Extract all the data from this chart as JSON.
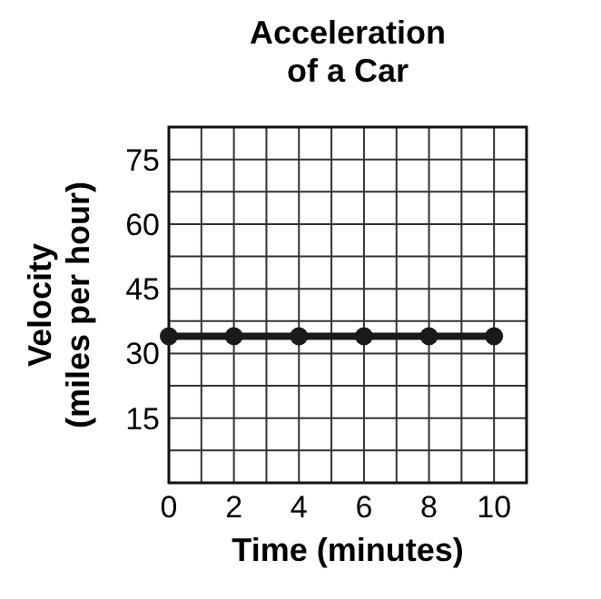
{
  "chart_data": {
    "type": "line",
    "title": "Acceleration of a Car",
    "xlabel": "Time (minutes)",
    "ylabel": "Velocity (miles per hour)",
    "x": [
      0,
      2,
      4,
      6,
      8,
      10
    ],
    "series": [
      {
        "color": "#1a1a1a",
        "values": [
          34,
          34,
          34,
          34,
          34,
          34
        ]
      }
    ],
    "xlim": [
      0,
      11
    ],
    "ylim": [
      0,
      82.5
    ],
    "xticks": [
      0,
      {
        "value": 1,
        "label": null
      },
      2,
      {
        "value": 3,
        "label": null
      },
      4,
      {
        "value": 5,
        "label": null
      },
      6,
      {
        "value": 7,
        "label": null
      },
      8,
      {
        "value": 9,
        "label": null
      },
      10
    ],
    "yticks": [
      {
        "value": 7.5,
        "label": null
      },
      15,
      {
        "value": 22.5,
        "label": null
      },
      30,
      {
        "value": 37.5,
        "label": null
      },
      45,
      {
        "value": 52.5,
        "label": null
      },
      60,
      {
        "value": 67.5,
        "label": null
      },
      75
    ],
    "grid": true,
    "marker": "circle",
    "line_style": "solid"
  }
}
